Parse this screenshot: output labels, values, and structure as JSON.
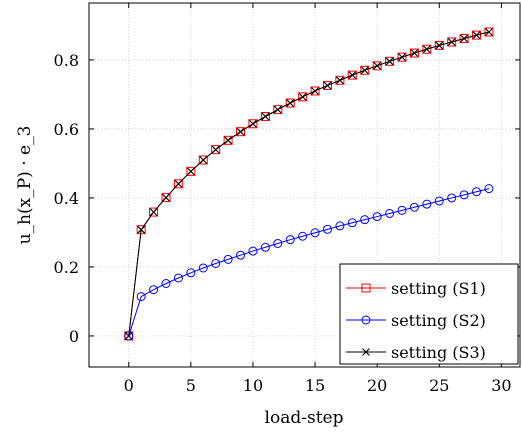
{
  "chart_data": {
    "type": "line",
    "xlabel": "load-step",
    "ylabel": "u_h(x_P) · e_3",
    "xlim": [
      -3.2,
      31.5
    ],
    "ylim": [
      -0.09,
      0.965
    ],
    "xticks": [
      0,
      5,
      10,
      15,
      20,
      25,
      30
    ],
    "yticks": [
      0,
      0.2,
      0.4,
      0.6,
      0.8
    ],
    "xtick_labels": [
      "0",
      "5",
      "10",
      "15",
      "20",
      "25",
      "30"
    ],
    "ytick_labels": [
      "0",
      "0.2",
      "0.4",
      "0.6",
      "0.8"
    ],
    "grid": true,
    "legend_position": "bottom-right",
    "x": [
      0,
      1,
      2,
      3,
      4,
      5,
      6,
      7,
      8,
      9,
      10,
      11,
      12,
      13,
      14,
      15,
      16,
      17,
      18,
      19,
      20,
      21,
      22,
      23,
      24,
      25,
      26,
      27,
      28,
      29
    ],
    "series": [
      {
        "name": "setting (S1)",
        "color": "#ff0000",
        "marker": "square",
        "values": [
          0.0,
          0.308,
          0.359,
          0.401,
          0.441,
          0.477,
          0.51,
          0.54,
          0.567,
          0.592,
          0.615,
          0.636,
          0.656,
          0.675,
          0.693,
          0.71,
          0.726,
          0.741,
          0.756,
          0.77,
          0.783,
          0.796,
          0.808,
          0.82,
          0.831,
          0.842,
          0.852,
          0.862,
          0.872,
          0.881
        ]
      },
      {
        "name": "setting (S2)",
        "color": "#0000ff",
        "marker": "circle",
        "values": [
          0.0,
          0.114,
          0.134,
          0.152,
          0.168,
          0.183,
          0.197,
          0.21,
          0.222,
          0.234,
          0.246,
          0.257,
          0.268,
          0.279,
          0.289,
          0.299,
          0.309,
          0.319,
          0.328,
          0.337,
          0.346,
          0.355,
          0.364,
          0.373,
          0.382,
          0.391,
          0.4,
          0.409,
          0.418,
          0.427
        ]
      },
      {
        "name": "setting (S3)",
        "color": "#000000",
        "marker": "cross",
        "values": [
          0.0,
          0.308,
          0.359,
          0.401,
          0.441,
          0.477,
          0.51,
          0.54,
          0.567,
          0.592,
          0.615,
          0.636,
          0.656,
          0.675,
          0.693,
          0.71,
          0.726,
          0.741,
          0.756,
          0.77,
          0.783,
          0.796,
          0.808,
          0.82,
          0.831,
          0.842,
          0.852,
          0.862,
          0.872,
          0.881
        ]
      }
    ]
  }
}
